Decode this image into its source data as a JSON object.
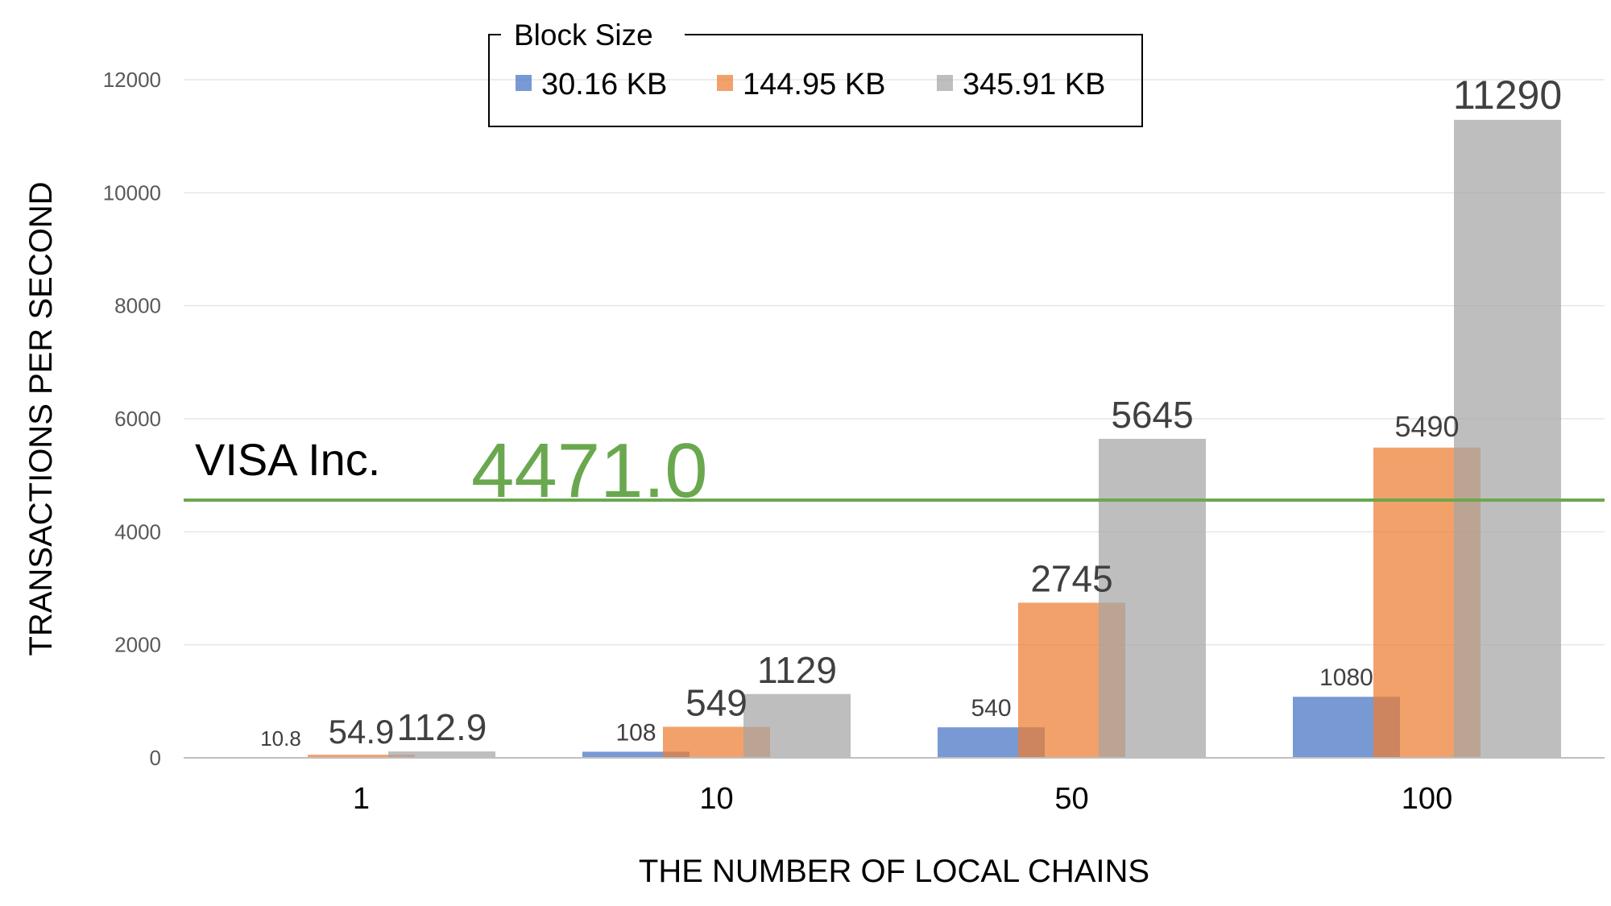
{
  "chart_data": {
    "type": "bar",
    "categories": [
      "1",
      "10",
      "50",
      "100"
    ],
    "series": [
      {
        "name": "30.16 KB",
        "color": "#4472c4",
        "values": [
          10.8,
          108,
          540,
          1080
        ],
        "value_labels": [
          "10.8",
          "108",
          "540",
          "1080"
        ]
      },
      {
        "name": "144.95 KB",
        "color": "#ed7d31",
        "values": [
          54.9,
          549,
          2745,
          5490
        ],
        "value_labels": [
          "54.9",
          "549",
          "2745",
          "5490"
        ]
      },
      {
        "name": "345.91 KB",
        "color": "#a5a5a5",
        "values": [
          112.9,
          1129,
          5645,
          11290
        ],
        "value_labels": [
          "112.9",
          "1129",
          "5645",
          "11290"
        ]
      }
    ],
    "xlabel": "THE NUMBER OF LOCAL CHAINS",
    "ylabel": "TRANSACTIONS PER SECOND",
    "ylim": [
      0,
      12000
    ],
    "yticks": [
      0,
      2000,
      4000,
      6000,
      8000,
      10000,
      12000
    ],
    "ytick_labels": [
      "0",
      "2000",
      "4000",
      "6000",
      "8000",
      "10000",
      "12000"
    ],
    "grid": true,
    "legend": {
      "title": "Block Size",
      "placement": "top-center"
    },
    "reference_line": {
      "label": "VISA Inc.",
      "value": 4471.0,
      "value_label": "4471.0",
      "color": "#6aa84f"
    }
  }
}
